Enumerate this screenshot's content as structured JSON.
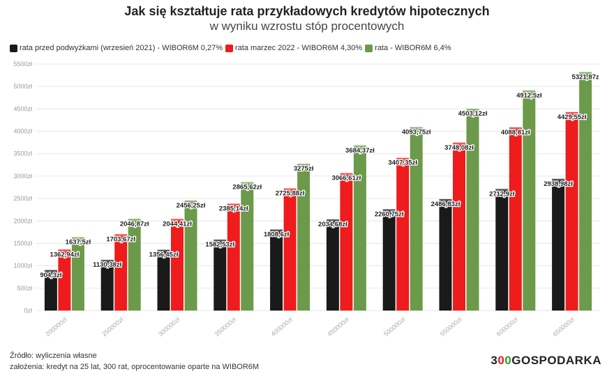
{
  "header": {
    "title": "Jak się kształtuje rata przykładowych kredytów hipotecznych",
    "subtitle": "w wyniku wzrostu stóp procentowych"
  },
  "footer": {
    "source": "Źródło: wyliczenia własne",
    "assumptions": "założenia: kredyt na 25 lat, 300 rat, oprocentowanie oparte na WIBOR6M"
  },
  "logo": {
    "part1": "3",
    "part2": "0",
    "part3": "0",
    "part4": "GOSPODARKA"
  },
  "chart_data": {
    "type": "bar",
    "categories": [
      "200000zł",
      "250000zł",
      "300000zł",
      "350000zł",
      "400000zł",
      "450000zł",
      "500000zł",
      "550000zł",
      "600000zł",
      "650000zł"
    ],
    "series": [
      {
        "name": "rata przed podwyżkami (wrzesień 2021) - WIBOR6M 0,27%",
        "color": "#1a1a1a",
        "values": [
          904.3,
          1130.38,
          1356.45,
          1582.53,
          1808.6,
          2034.68,
          2260.75,
          2486.83,
          2712.9,
          2938.98
        ],
        "labels": [
          "904,3zł",
          "1130,38zł",
          "1356,45zł",
          "1582,53zł",
          "1808,6zł",
          "2034,68zł",
          "2260,75zł",
          "2486,83zł",
          "2712,9zł",
          "2938,98zł"
        ]
      },
      {
        "name": "rata marzec 2022 - WIBOR6M 4,30%",
        "color": "#ee1c1c",
        "values": [
          1362.94,
          1703.67,
          2044.41,
          2385.14,
          2725.88,
          3066.61,
          3407.35,
          3748.08,
          4088.81,
          4429.55
        ],
        "labels": [
          "1362,94zł",
          "1703,67zł",
          "2044,41zł",
          "2385,14zł",
          "2725,88zł",
          "3066,61zł",
          "3407,35zł",
          "3748,08zł",
          "4088,81zł",
          "4429,55zł"
        ]
      },
      {
        "name": "rata - WIBOR6M 6,4%",
        "color": "#6b9a4b",
        "values": [
          1637.5,
          2046.87,
          2456.25,
          2865.62,
          3275,
          3684.37,
          4093.75,
          4503.12,
          4912.5,
          5321.87
        ],
        "labels": [
          "1637,5zł",
          "2046,87zł",
          "2456,25zł",
          "2865,62zł",
          "3275zł",
          "3684,37zł",
          "4093,75zł",
          "4503,12zł",
          "4912,5zł",
          "5321,87z"
        ]
      }
    ],
    "y_ticks": [
      "0zł",
      "500zł",
      "1000zł",
      "1500zł",
      "2000zł",
      "2500zł",
      "3000zł",
      "3500zł",
      "4000zł",
      "4500zł",
      "5000zł",
      "5500zł"
    ],
    "ylim": [
      0,
      5500
    ],
    "grid": true,
    "legend_position": "top-left"
  }
}
